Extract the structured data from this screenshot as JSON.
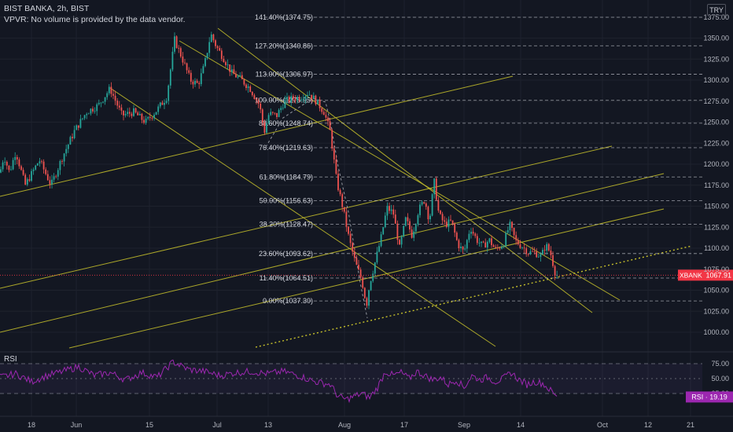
{
  "header": {
    "title": "BIST BANKA, 2h, BIST",
    "volume_note": "VPVR: No volume is provided by the data vendor.",
    "currency": "TRY"
  },
  "rsi_pane": {
    "label": "RSI",
    "value_badge": "RSI · 19.19",
    "levels": [
      75,
      50,
      25
    ],
    "tick_labels": [
      "75.00",
      "50.00",
      "25.00"
    ]
  },
  "price_badge": {
    "symbol": "XBANK",
    "value": "1067.91"
  },
  "colors": {
    "background": "#131722",
    "up": "#26a69a",
    "down": "#ef5350",
    "channel_lines": "#c7c12b",
    "fib_lines": "#d1d4dc",
    "rsi_line": "#9c27b0",
    "price_badge": "#f23645"
  },
  "chart_data": {
    "type": "candlestick",
    "y_axis": {
      "range": [
        990,
        1382
      ],
      "ticks": [
        1375,
        1350,
        1325,
        1300,
        1275,
        1250,
        1225,
        1200,
        1175,
        1150,
        1125,
        1100,
        1075,
        1050,
        1025,
        1000
      ],
      "tick_labels": [
        "1375.00",
        "1350.00",
        "1325.00",
        "1300.00",
        "1275.00",
        "1250.00",
        "1225.00",
        "1200.00",
        "1175.00",
        "1150.00",
        "1125.00",
        "1100.00",
        "1075.00",
        "1050.00",
        "1025.00",
        "1000.00"
      ]
    },
    "x_axis": {
      "tick_labels": [
        "18",
        "Jun",
        "15",
        "Jul",
        "13",
        "Aug",
        "17",
        "Sep",
        "14",
        "Oct",
        "12",
        "21"
      ]
    },
    "fibonacci": [
      {
        "level": "141.40%",
        "price": 1374.75,
        "label": "141.40%(1374.75)"
      },
      {
        "level": "127.20%",
        "price": 1340.86,
        "label": "127.20%(1340.86)"
      },
      {
        "level": "113.00%",
        "price": 1306.97,
        "label": "113.00%(1306.97)"
      },
      {
        "level": "100.00%",
        "price": 1275.95,
        "label": "100.00%(1275.95)"
      },
      {
        "level": "88.60%",
        "price": 1248.74,
        "label": "88.60%(1248.74)"
      },
      {
        "level": "76.40%",
        "price": 1219.63,
        "label": "76.40%(1219.63)"
      },
      {
        "level": "61.80%",
        "price": 1184.79,
        "label": "61.80%(1184.79)"
      },
      {
        "level": "50.00%",
        "price": 1156.63,
        "label": "50.00%(1156.63)"
      },
      {
        "level": "38.20%",
        "price": 1128.47,
        "label": "38.20%(1128.47)"
      },
      {
        "level": "23.60%",
        "price": 1093.62,
        "label": "23.60%(1093.62)"
      },
      {
        "level": "11.40%",
        "price": 1064.51,
        "label": "11.40%(1064.51)"
      },
      {
        "level": "0.00%",
        "price": 1037.3,
        "label": "0.00%(1037.30)"
      }
    ],
    "last_price": 1067.91,
    "price_path": [
      [
        0,
        1190
      ],
      [
        5,
        1210
      ],
      [
        12,
        1190
      ],
      [
        20,
        1215
      ],
      [
        32,
        1175
      ],
      [
        50,
        1205
      ],
      [
        65,
        1175
      ],
      [
        80,
        1210
      ],
      [
        95,
        1240
      ],
      [
        110,
        1262
      ],
      [
        125,
        1270
      ],
      [
        140,
        1290
      ],
      [
        155,
        1258
      ],
      [
        170,
        1262
      ],
      [
        185,
        1250
      ],
      [
        200,
        1265
      ],
      [
        212,
        1280
      ],
      [
        222,
        1348
      ],
      [
        232,
        1325
      ],
      [
        242,
        1300
      ],
      [
        252,
        1295
      ],
      [
        260,
        1318
      ],
      [
        268,
        1355
      ],
      [
        275,
        1340
      ],
      [
        285,
        1325
      ],
      [
        295,
        1308
      ],
      [
        305,
        1302
      ],
      [
        318,
        1290
      ],
      [
        330,
        1270
      ],
      [
        336,
        1238
      ],
      [
        342,
        1260
      ],
      [
        352,
        1258
      ],
      [
        362,
        1275
      ],
      [
        372,
        1278
      ],
      [
        382,
        1280
      ],
      [
        392,
        1285
      ],
      [
        402,
        1275
      ],
      [
        412,
        1262
      ],
      [
        420,
        1238
      ],
      [
        428,
        1180
      ],
      [
        436,
        1148
      ],
      [
        444,
        1110
      ],
      [
        452,
        1082
      ],
      [
        460,
        1062
      ],
      [
        466,
        1032
      ],
      [
        470,
        1058
      ],
      [
        476,
        1080
      ],
      [
        484,
        1110
      ],
      [
        492,
        1148
      ],
      [
        500,
        1142
      ],
      [
        508,
        1100
      ],
      [
        516,
        1135
      ],
      [
        524,
        1115
      ],
      [
        532,
        1145
      ],
      [
        540,
        1158
      ],
      [
        546,
        1132
      ],
      [
        552,
        1180
      ],
      [
        558,
        1140
      ],
      [
        566,
        1128
      ],
      [
        574,
        1132
      ],
      [
        582,
        1105
      ],
      [
        590,
        1095
      ],
      [
        598,
        1125
      ],
      [
        606,
        1110
      ],
      [
        614,
        1102
      ],
      [
        622,
        1110
      ],
      [
        630,
        1098
      ],
      [
        640,
        1105
      ],
      [
        648,
        1128
      ],
      [
        656,
        1108
      ],
      [
        664,
        1102
      ],
      [
        672,
        1095
      ],
      [
        680,
        1095
      ],
      [
        688,
        1090
      ],
      [
        694,
        1104
      ],
      [
        700,
        1094
      ],
      [
        706,
        1070
      ],
      [
        709,
        1067.91
      ]
    ],
    "rsi_path": [
      [
        0,
        52
      ],
      [
        20,
        58
      ],
      [
        40,
        45
      ],
      [
        60,
        55
      ],
      [
        80,
        62
      ],
      [
        100,
        70
      ],
      [
        120,
        55
      ],
      [
        140,
        60
      ],
      [
        160,
        48
      ],
      [
        180,
        60
      ],
      [
        200,
        52
      ],
      [
        220,
        78
      ],
      [
        240,
        65
      ],
      [
        260,
        62
      ],
      [
        280,
        55
      ],
      [
        300,
        60
      ],
      [
        320,
        62
      ],
      [
        340,
        58
      ],
      [
        360,
        62
      ],
      [
        380,
        55
      ],
      [
        400,
        45
      ],
      [
        420,
        40
      ],
      [
        430,
        20
      ],
      [
        440,
        15
      ],
      [
        450,
        20
      ],
      [
        460,
        25
      ],
      [
        470,
        18
      ],
      [
        480,
        35
      ],
      [
        490,
        62
      ],
      [
        500,
        55
      ],
      [
        510,
        60
      ],
      [
        520,
        50
      ],
      [
        530,
        62
      ],
      [
        540,
        55
      ],
      [
        550,
        48
      ],
      [
        560,
        52
      ],
      [
        570,
        40
      ],
      [
        580,
        48
      ],
      [
        590,
        35
      ],
      [
        600,
        55
      ],
      [
        610,
        48
      ],
      [
        620,
        52
      ],
      [
        630,
        45
      ],
      [
        640,
        50
      ],
      [
        650,
        60
      ],
      [
        660,
        48
      ],
      [
        670,
        40
      ],
      [
        680,
        45
      ],
      [
        690,
        42
      ],
      [
        700,
        30
      ],
      [
        709,
        19.19
      ]
    ]
  }
}
